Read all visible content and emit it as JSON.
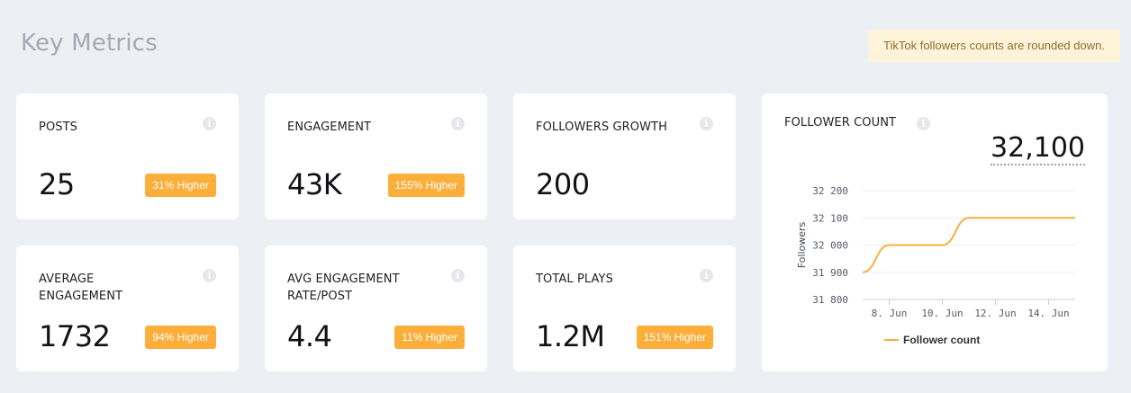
{
  "header": {
    "title": "Key Metrics",
    "notice": "TikTok followers counts are rounded down."
  },
  "metrics": [
    {
      "label": "POSTS",
      "value": "25",
      "badge": "31% Higher"
    },
    {
      "label": "ENGAGEMENT",
      "value": "43K",
      "badge": "155% Higher"
    },
    {
      "label": "FOLLOWERS GROWTH",
      "value": "200",
      "badge": ""
    },
    {
      "label": "AVERAGE ENGAGEMENT",
      "value": "1732",
      "badge": "94% Higher"
    },
    {
      "label": "AVG ENGAGEMENT RATE/POST",
      "value": "4.4",
      "badge": "11% Higher"
    },
    {
      "label": "TOTAL PLAYS",
      "value": "1.2M",
      "badge": "151% Higher"
    }
  ],
  "info_icon": {
    "glyph": "i",
    "icon": "info-icon"
  },
  "follower_card": {
    "title": "FOLLOWER COUNT",
    "value": "32,100"
  },
  "colors": {
    "accent": "#fcae3b",
    "line": "#f5b042",
    "notice_bg": "#fdf3d8",
    "background": "#eceff4"
  },
  "chart_data": {
    "type": "line",
    "ylabel": "Followers",
    "xlabel": "",
    "ylim": [
      31800,
      32200
    ],
    "yticks": [
      31800,
      31900,
      32000,
      32100,
      32200
    ],
    "ytick_labels": [
      "31 800",
      "31 900",
      "32 000",
      "32 100",
      "32 200"
    ],
    "xlim": [
      7,
      15
    ],
    "xticks": [
      8,
      10,
      12,
      14
    ],
    "xtick_labels": [
      "8. Jun",
      "10. Jun",
      "12. Jun",
      "14. Jun"
    ],
    "grid": true,
    "legend": "bottom",
    "series": [
      {
        "name": "Follower count",
        "x": [
          7,
          8,
          9,
          10,
          11,
          12,
          13,
          14,
          15
        ],
        "values": [
          31900,
          32000,
          32000,
          32000,
          32100,
          32100,
          32100,
          32100,
          32100
        ]
      }
    ]
  }
}
